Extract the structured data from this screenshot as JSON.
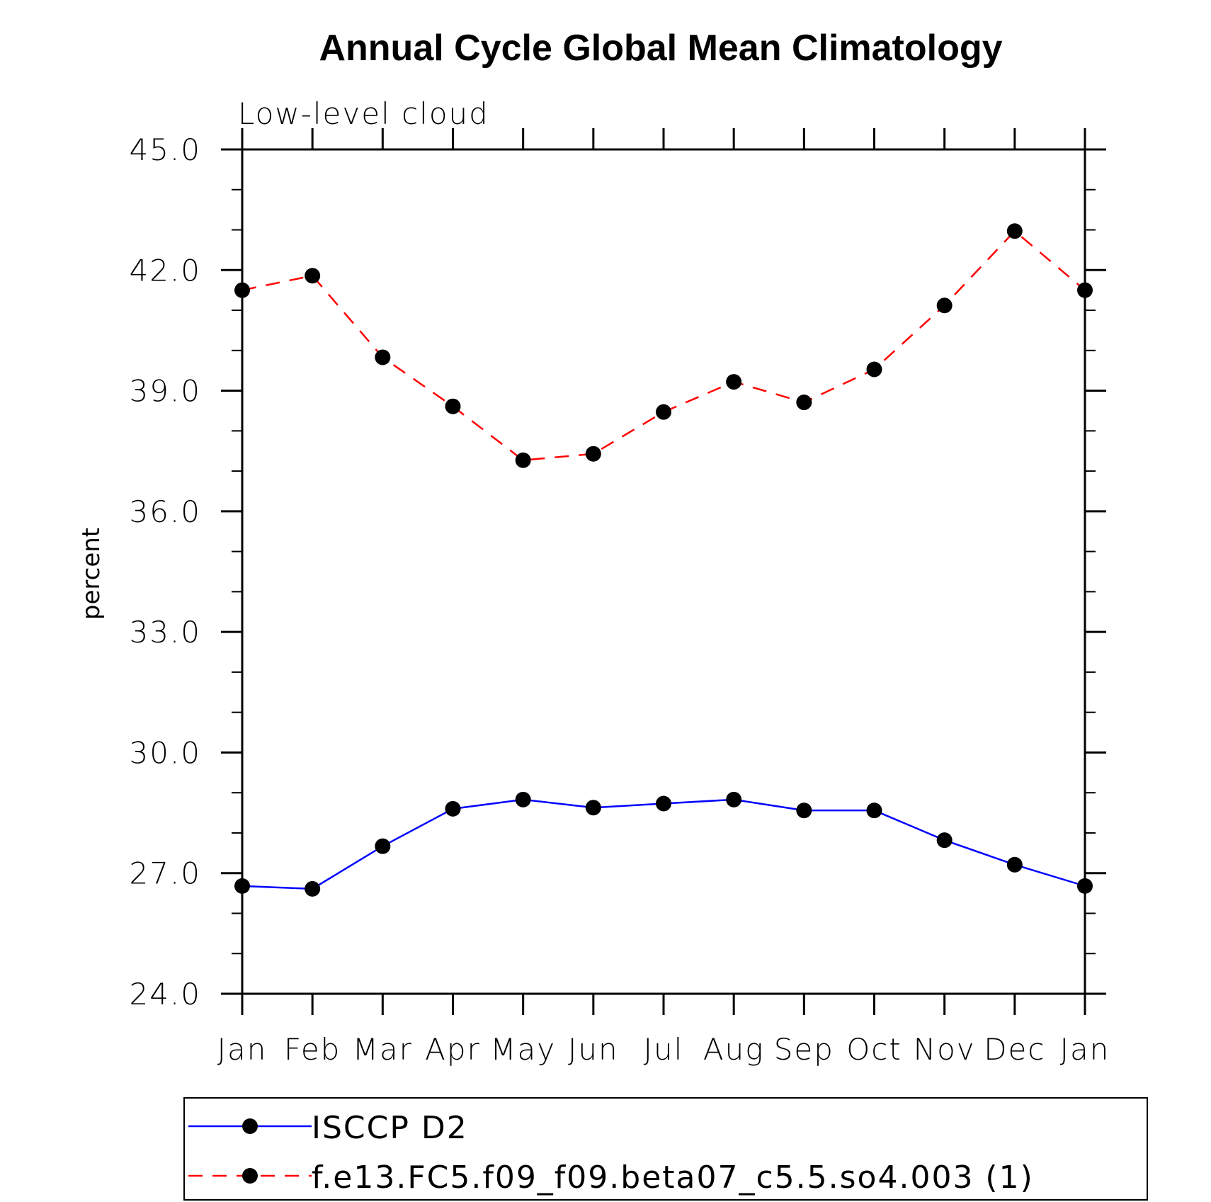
{
  "chart_data": {
    "type": "line",
    "title": "Annual Cycle Global Mean Climatology",
    "subtitle": "Low-level cloud",
    "ylabel": "percent",
    "xlabel": "",
    "ylim": [
      24.0,
      45.0
    ],
    "yticks": [
      "24.0",
      "27.0",
      "30.0",
      "33.0",
      "36.0",
      "39.0",
      "42.0",
      "45.0"
    ],
    "categories": [
      "Jan",
      "Feb",
      "Mar",
      "Apr",
      "May",
      "Jun",
      "Jul",
      "Aug",
      "Sep",
      "Oct",
      "Nov",
      "Dec",
      "Jan"
    ],
    "series": [
      {
        "name": "ISCCP D2",
        "color": "#0000ff",
        "dash": "solid",
        "values": [
          26.68,
          26.61,
          27.67,
          28.6,
          28.83,
          28.63,
          28.73,
          28.83,
          28.56,
          28.56,
          27.82,
          27.21,
          26.68
        ]
      },
      {
        "name": "f.e13.FC5.f09_f09.beta07_c5.5.so4.003 (1)",
        "color": "#ff0000",
        "dash": "dashed",
        "values": [
          41.5,
          41.86,
          39.83,
          38.61,
          37.27,
          37.43,
          38.47,
          39.22,
          38.71,
          39.53,
          41.12,
          42.97,
          41.5
        ]
      }
    ],
    "marker_color": "#000000",
    "legend_position": "bottom"
  }
}
